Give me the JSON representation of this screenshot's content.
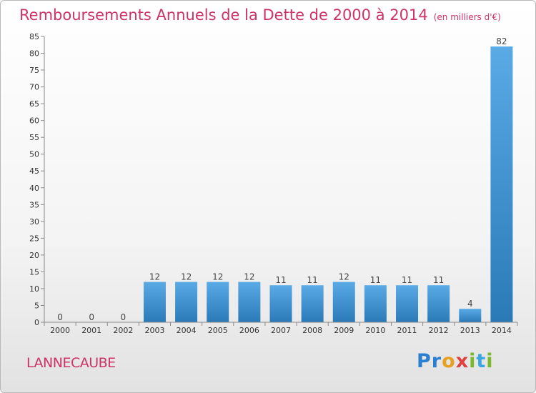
{
  "header": {
    "title": "Remboursements Annuels de la Dette de 2000 à 2014",
    "subtitle": "(en milliers d'€)"
  },
  "location": "LANNECAUBE",
  "logo": {
    "text": "Proxiti",
    "colors": [
      "#2a7fd0",
      "#e8a020",
      "#e04040",
      "#7aba2a",
      "#3aa6e0"
    ]
  },
  "chart_data": {
    "type": "bar",
    "title": "Remboursements Annuels de la Dette de 2000 à 2014",
    "subtitle": "(en milliers d'€)",
    "categories": [
      "2000",
      "2001",
      "2002",
      "2003",
      "2004",
      "2005",
      "2006",
      "2007",
      "2008",
      "2009",
      "2010",
      "2011",
      "2012",
      "2013",
      "2014"
    ],
    "values": [
      0,
      0,
      0,
      12,
      12,
      12,
      12,
      11,
      11,
      12,
      11,
      11,
      11,
      4,
      82
    ],
    "ylim": [
      0,
      85
    ],
    "yticks": [
      0,
      5,
      10,
      15,
      20,
      25,
      30,
      35,
      40,
      45,
      50,
      55,
      60,
      65,
      70,
      75,
      80,
      85
    ],
    "grid": false,
    "bar_color_top": "#5aaae6",
    "bar_color_bottom": "#2a7ab8",
    "xlabel": "",
    "ylabel": ""
  }
}
